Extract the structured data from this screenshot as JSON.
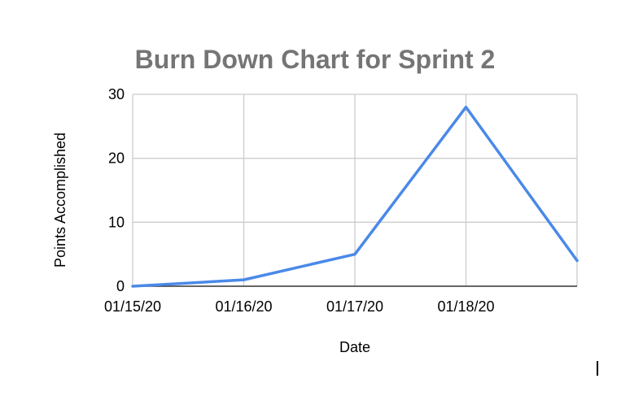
{
  "chart_data": {
    "type": "line",
    "title": "Burn Down Chart for Sprint 2",
    "xlabel": "Date",
    "ylabel": "Points Accomplished",
    "categories": [
      "01/15/20",
      "01/16/20",
      "01/17/20",
      "01/18/20",
      ""
    ],
    "series": [
      {
        "values": [
          0,
          1,
          5,
          28,
          4
        ]
      }
    ],
    "ylim": [
      0,
      30
    ],
    "yticks": [
      0,
      10,
      20,
      30
    ],
    "grid": true,
    "legend": "none",
    "colors": {
      "series": "#4a89e8",
      "grid": "#cccccc",
      "title": "#757575",
      "baseline": "#333333"
    }
  }
}
